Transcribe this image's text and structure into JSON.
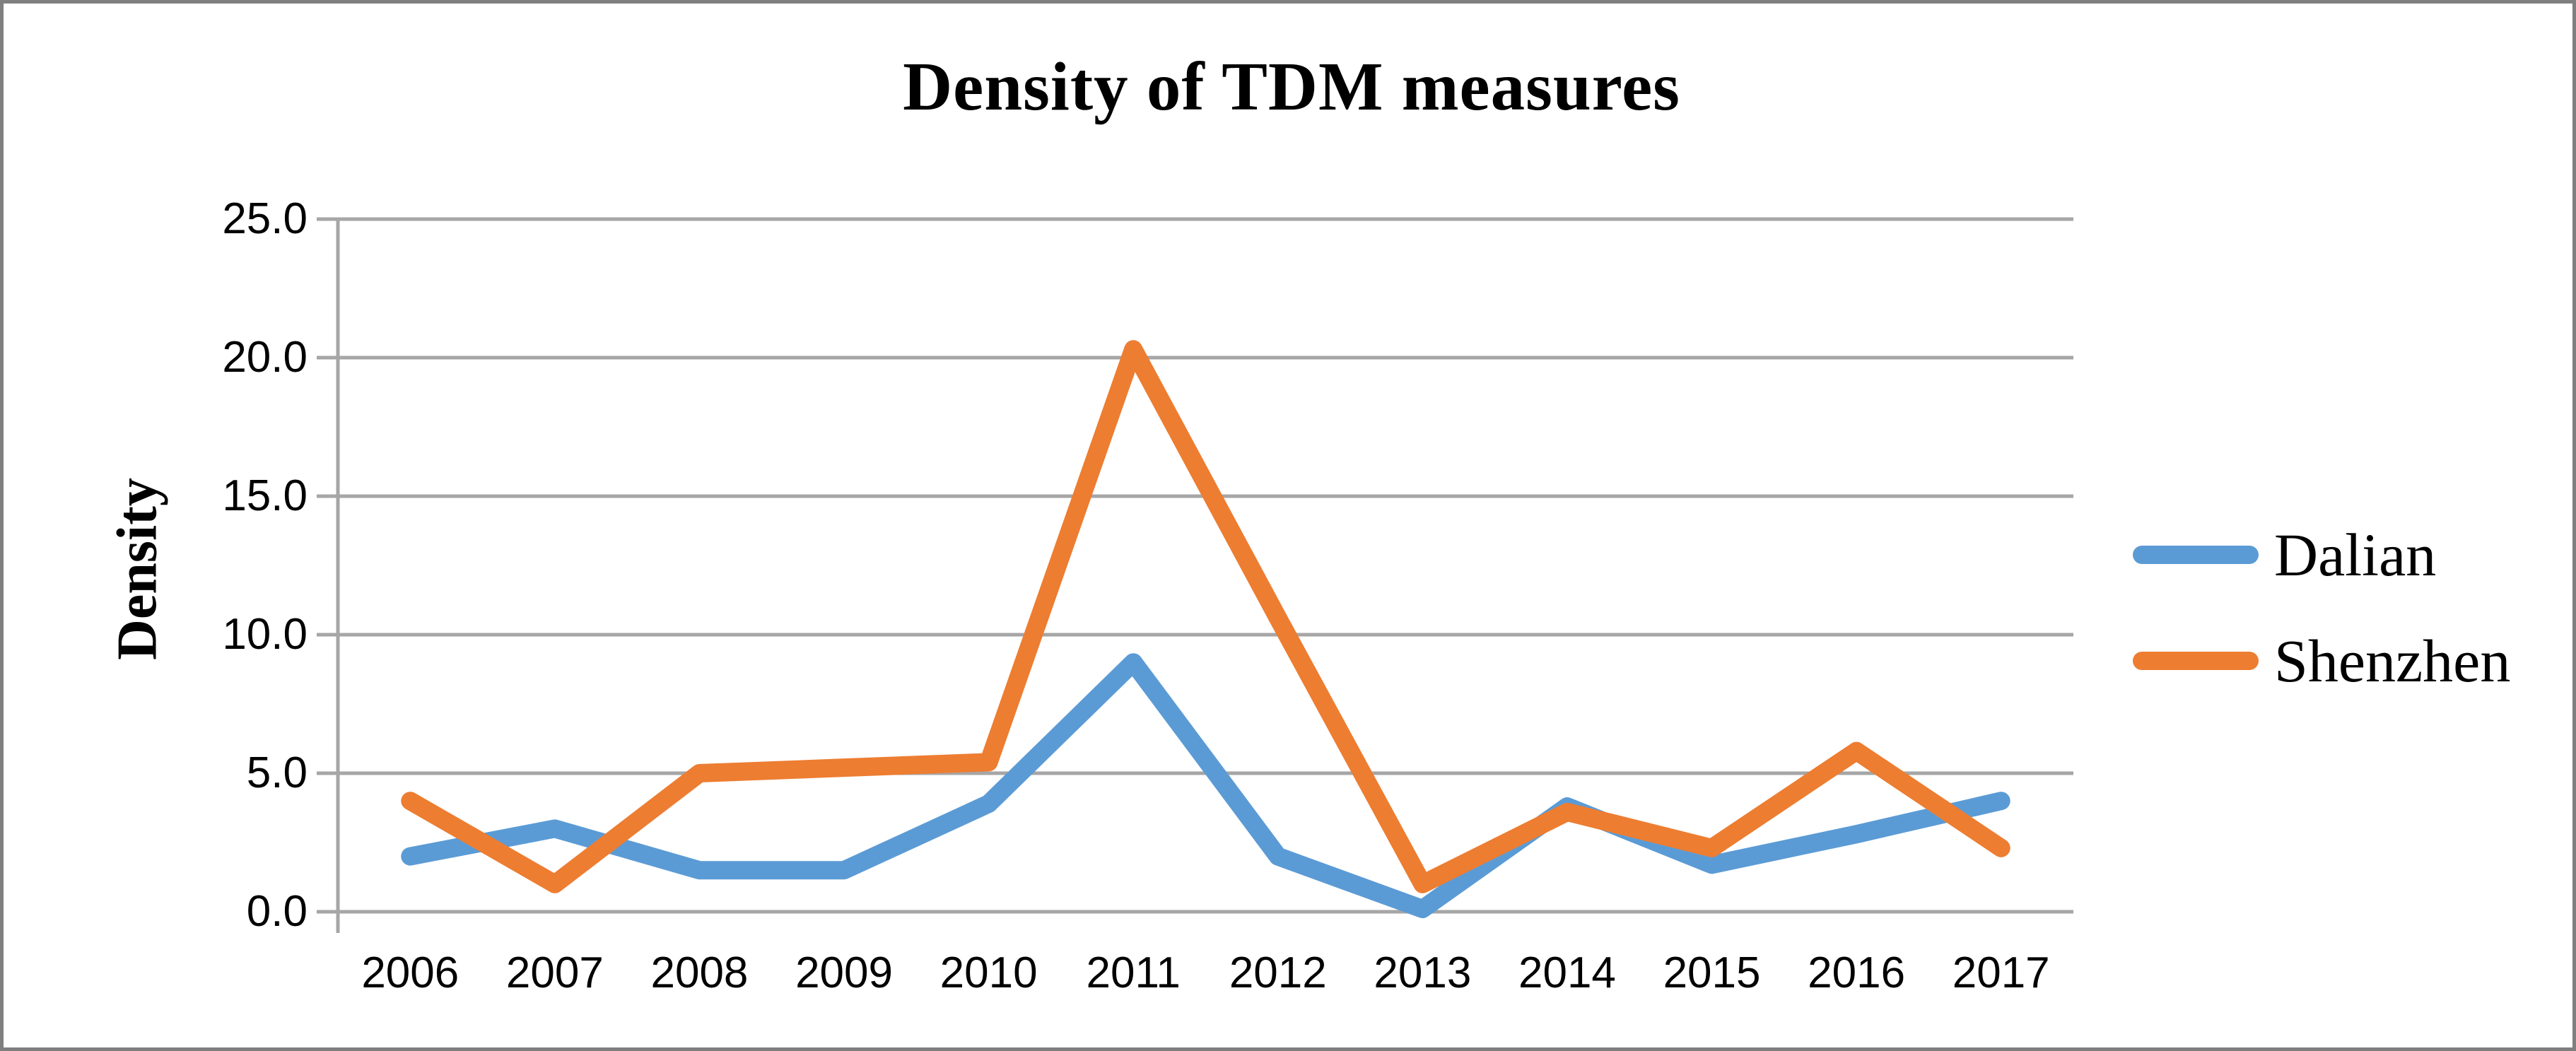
{
  "title": "Density of TDM measures",
  "y_axis": {
    "title": "Density",
    "ticks": [
      "0.0",
      "5.0",
      "10.0",
      "15.0",
      "20.0",
      "25.0"
    ]
  },
  "legend": {
    "items": [
      {
        "label": "Dalian",
        "color": "#5B9BD5"
      },
      {
        "label": "Shenzhen",
        "color": "#ED7D31"
      }
    ]
  },
  "colors": {
    "gridline": "#A6A6A6",
    "axis": "#A6A6A6",
    "frame_border": "#7F7F7F",
    "text": "#000000"
  },
  "chart_data": {
    "type": "line",
    "title": "Density of TDM measures",
    "xlabel": "",
    "ylabel": "Density",
    "ylim": [
      0,
      25
    ],
    "ytick_step": 5,
    "grid": true,
    "legend_position": "right",
    "categories": [
      "2006",
      "2007",
      "2008",
      "2009",
      "2010",
      "2011",
      "2012",
      "2013",
      "2014",
      "2015",
      "2016",
      "2017"
    ],
    "series": [
      {
        "name": "Dalian",
        "color": "#5B9BD5",
        "values": [
          2.0,
          3.0,
          1.5,
          1.5,
          3.9,
          9.0,
          2.0,
          0.1,
          3.8,
          1.7,
          2.8,
          4.0
        ]
      },
      {
        "name": "Shenzhen",
        "color": "#ED7D31",
        "values": [
          4.0,
          1.0,
          5.0,
          5.2,
          5.4,
          20.3,
          10.6,
          1.0,
          3.6,
          2.3,
          5.8,
          2.3
        ]
      }
    ]
  }
}
